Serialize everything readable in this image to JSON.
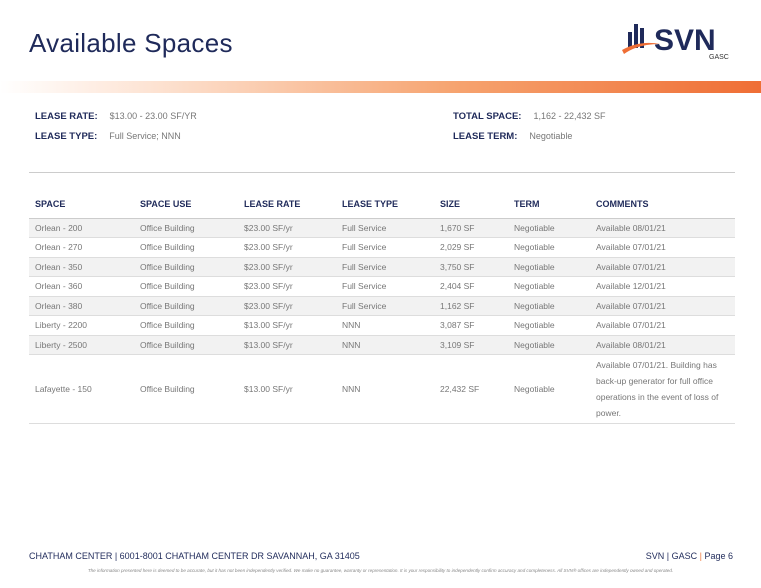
{
  "page": {
    "title": "Available Spaces"
  },
  "logo": {
    "text": "SVN",
    "sub": "GASC",
    "colors": {
      "navy": "#1f2a5a",
      "orange": "#ef6e35"
    }
  },
  "summary": {
    "lease_rate": {
      "label": "LEASE RATE:",
      "value": "$13.00 - 23.00 SF/YR"
    },
    "lease_type": {
      "label": "LEASE TYPE:",
      "value": "Full Service; NNN"
    },
    "total_space": {
      "label": "TOTAL SPACE:",
      "value": "1,162 - 22,432 SF"
    },
    "lease_term": {
      "label": "LEASE TERM:",
      "value": "Negotiable"
    }
  },
  "table": {
    "headers": [
      "SPACE",
      "SPACE USE",
      "LEASE RATE",
      "LEASE TYPE",
      "SIZE",
      "TERM",
      "COMMENTS"
    ],
    "rows": [
      [
        "Orlean - 200",
        "Office Building",
        "$23.00 SF/yr",
        "Full Service",
        "1,670 SF",
        "Negotiable",
        "Available 08/01/21"
      ],
      [
        "Orlean - 270",
        "Office Building",
        "$23.00 SF/yr",
        "Full Service",
        "2,029 SF",
        "Negotiable",
        "Available 07/01/21"
      ],
      [
        "Orlean - 350",
        "Office Building",
        "$23.00 SF/yr",
        "Full Service",
        "3,750 SF",
        "Negotiable",
        "Available 07/01/21"
      ],
      [
        "Orlean - 360",
        "Office Building",
        "$23.00 SF/yr",
        "Full Service",
        "2,404 SF",
        "Negotiable",
        "Available 12/01/21"
      ],
      [
        "Orlean - 380",
        "Office Building",
        "$23.00 SF/yr",
        "Full Service",
        "1,162 SF",
        "Negotiable",
        "Available 07/01/21"
      ],
      [
        "Liberty - 2200",
        "Office Building",
        "$13.00 SF/yr",
        "NNN",
        "3,087 SF",
        "Negotiable",
        "Available 07/01/21"
      ],
      [
        "Liberty - 2500",
        "Office Building",
        "$13.00 SF/yr",
        "NNN",
        "3,109 SF",
        "Negotiable",
        "Available 08/01/21"
      ],
      [
        "Lafayette - 150",
        "Office Building",
        "$13.00 SF/yr",
        "NNN",
        "22,432 SF",
        "Negotiable",
        "Available 07/01/21. Building has back-up generator for full office operations in the event of loss of power."
      ]
    ]
  },
  "footer": {
    "address": "CHATHAM CENTER | 6001-8001 CHATHAM CENTER DR SAVANNAH, GA 31405",
    "brand": "SVN | GASC",
    "pipe": "|",
    "page": "Page 6",
    "disclaimer": "The information presented here is deemed to be accurate, but it has not been independently verified. We make no guarantee, warranty or representation. It is your responsibility to independently confirm accuracy and completeness. All SVN® offices are independently owned and operated."
  }
}
